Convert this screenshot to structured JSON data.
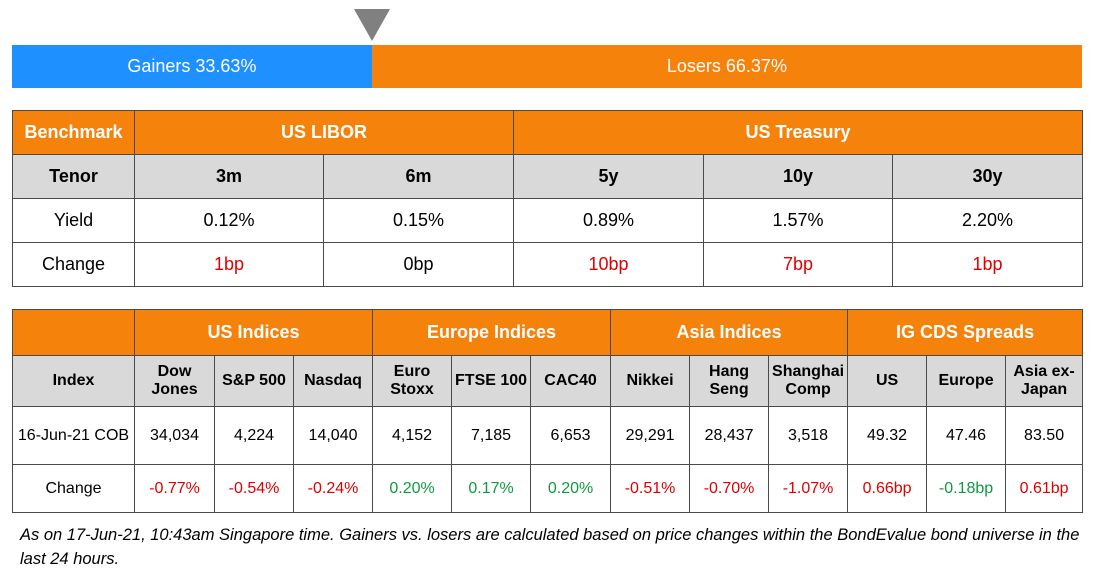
{
  "ratio": {
    "gainers_label": "Gainers 33.63%",
    "losers_label": "Losers 66.37%",
    "gainers_pct": 33.63,
    "losers_pct": 66.37
  },
  "rates_table": {
    "benchmark_label": "Benchmark",
    "libor_label": "US LIBOR",
    "treasury_label": "US Treasury",
    "tenor_label": "Tenor",
    "tenors": [
      "3m",
      "6m",
      "5y",
      "10y",
      "30y"
    ],
    "yield_label": "Yield",
    "yields": [
      "0.12%",
      "0.15%",
      "0.89%",
      "1.57%",
      "2.20%"
    ],
    "change_label": "Change",
    "changes": [
      "1bp",
      "0bp",
      "10bp",
      "7bp",
      "1bp"
    ]
  },
  "indices_table": {
    "groups": [
      "US Indices",
      "Europe Indices",
      "Asia Indices",
      "IG CDS Spreads"
    ],
    "index_label": "Index",
    "columns": [
      "Dow Jones",
      "S&P 500",
      "Nasdaq",
      "Euro Stoxx",
      "FTSE 100",
      "CAC40",
      "Nikkei",
      "Hang Seng",
      "Shanghai Comp",
      "US",
      "Europe",
      "Asia ex-Japan"
    ],
    "date_label": "16-Jun-21 COB",
    "values": [
      "34,034",
      "4,224",
      "14,040",
      "4,152",
      "7,185",
      "6,653",
      "29,291",
      "28,437",
      "3,518",
      "49.32",
      "47.46",
      "83.50"
    ],
    "change_label": "Change",
    "changes": [
      "-0.77%",
      "-0.54%",
      "-0.24%",
      "0.20%",
      "0.17%",
      "0.20%",
      "-0.51%",
      "-0.70%",
      "-1.07%",
      "0.66bp",
      "-0.18bp",
      "0.61bp"
    ]
  },
  "footnote": "As on 17-Jun-21, 10:43am Singapore time. Gainers vs. losers are calculated based on price changes within the BondEvalue bond universe in the last 24 hours.",
  "colors": {
    "orange": "#f5820b",
    "blue": "#1e90ff",
    "grey": "#d9d9d9",
    "red": "#e00000",
    "green": "#109a3c"
  }
}
